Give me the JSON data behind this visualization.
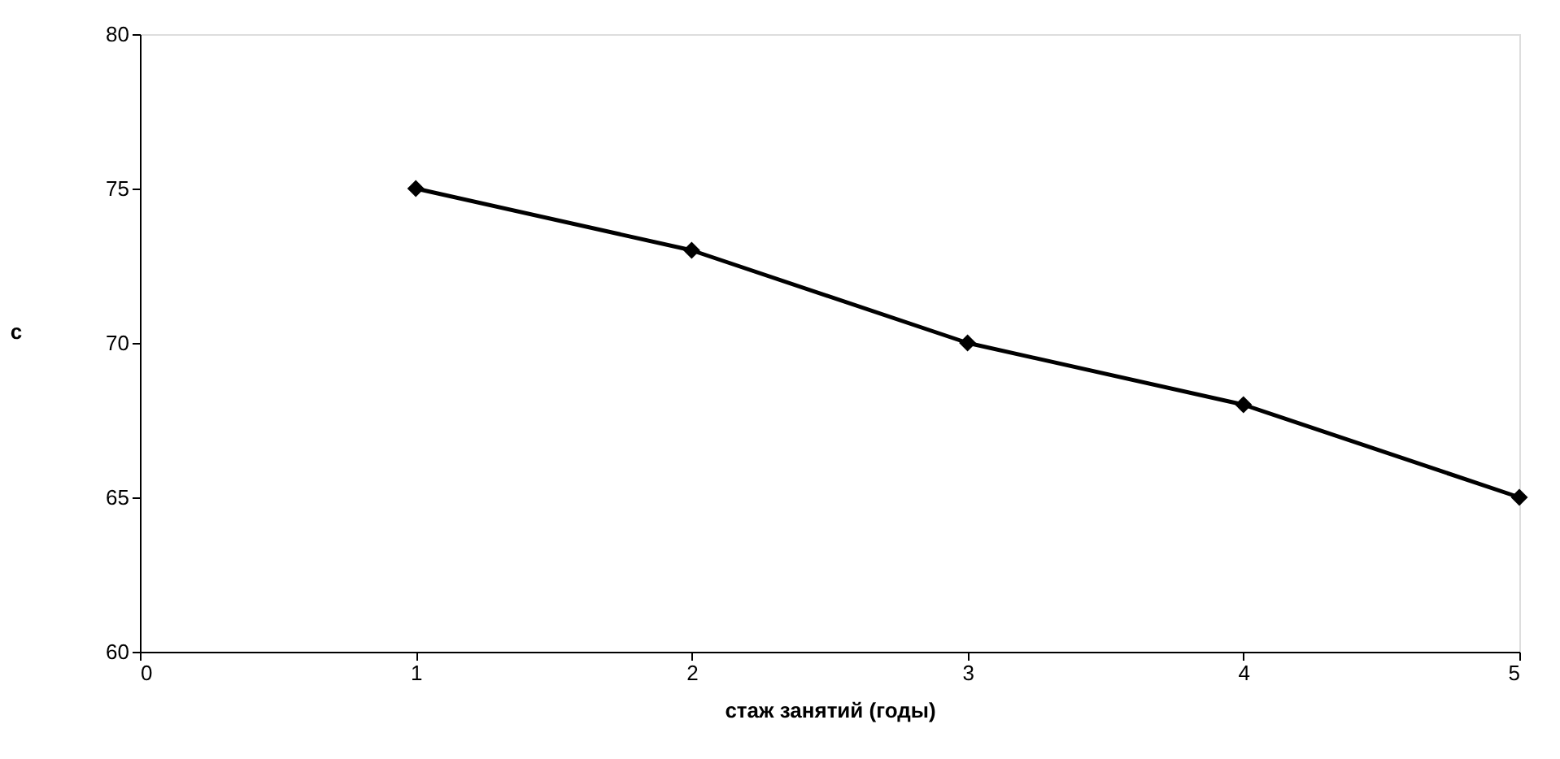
{
  "chart_data": {
    "type": "line",
    "xlabel": "стаж занятий (годы)",
    "ylabel": "с",
    "x": [
      1,
      2,
      3,
      4,
      5
    ],
    "series": [
      {
        "color": "#000000",
        "values": [
          75,
          73,
          70,
          68,
          65
        ]
      }
    ],
    "xlim": [
      0,
      5
    ],
    "xticks": [
      0,
      1,
      2,
      3,
      4,
      5
    ],
    "ylim": [
      60,
      80
    ],
    "yticks": [
      60,
      65,
      70,
      75,
      80
    ],
    "grid": false,
    "marker": "diamond",
    "line_style": "solid"
  }
}
